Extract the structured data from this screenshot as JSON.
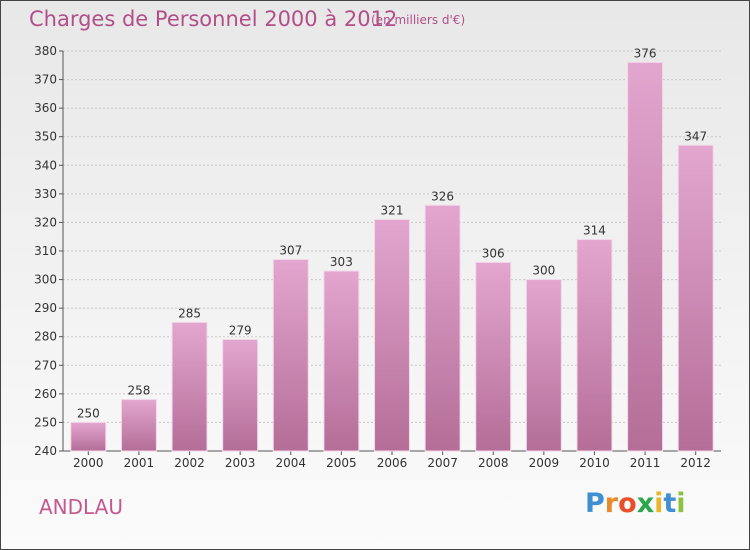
{
  "title": "Charges de Personnel 2000 à 2012",
  "subtitle": "(en milliers d'€)",
  "town": "ANDLAU",
  "logo": {
    "letters": [
      "P",
      "r",
      "o",
      "x",
      "i",
      "t",
      "i"
    ],
    "colors": [
      "#3f8fd2",
      "#e88a2a",
      "#e8502a",
      "#2aa84a",
      "#e8b82a",
      "#3f8fd2",
      "#8ac43f"
    ]
  },
  "colors": {
    "bar_top": "#e3a6cf",
    "bar_bottom": "#b46e98",
    "title": "#b24f8a"
  },
  "chart_data": {
    "type": "bar",
    "categories": [
      "2000",
      "2001",
      "2002",
      "2003",
      "2004",
      "2005",
      "2006",
      "2007",
      "2008",
      "2009",
      "2010",
      "2011",
      "2012"
    ],
    "values": [
      250,
      258,
      285,
      279,
      307,
      303,
      321,
      326,
      306,
      300,
      314,
      376,
      347
    ],
    "ylim": [
      240,
      380
    ],
    "yticks": [
      240,
      250,
      260,
      270,
      280,
      290,
      300,
      310,
      320,
      330,
      340,
      350,
      360,
      370,
      380
    ],
    "grid": true,
    "data_labels": true
  }
}
